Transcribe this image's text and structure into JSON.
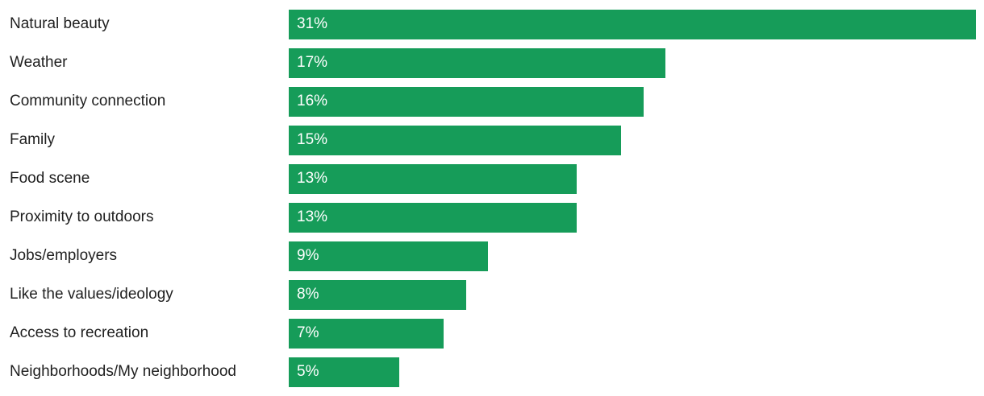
{
  "chart_data": {
    "type": "bar",
    "orientation": "horizontal",
    "title": "",
    "xlabel": "",
    "ylabel": "",
    "xlim": [
      0,
      31
    ],
    "grid": false,
    "legend": false,
    "bar_color": "#169c59",
    "label_color": "#1f1f1f",
    "value_label_color": "#ffffff",
    "categories": [
      "Natural beauty",
      "Weather",
      "Community connection",
      "Family",
      "Food scene",
      "Proximity to outdoors",
      "Jobs/employers",
      "Like the values/ideology",
      "Access to recreation",
      "Neighborhoods/My neighborhood"
    ],
    "values": [
      31,
      17,
      16,
      15,
      13,
      13,
      9,
      8,
      7,
      5
    ],
    "value_labels": [
      "31%",
      "17%",
      "16%",
      "15%",
      "13%",
      "13%",
      "9%",
      "8%",
      "7%",
      "5%"
    ]
  }
}
